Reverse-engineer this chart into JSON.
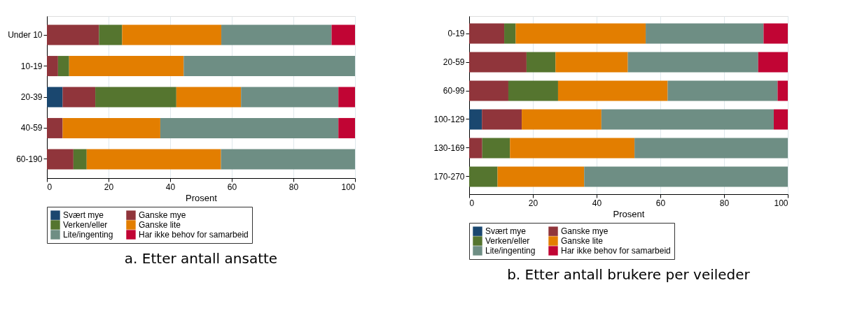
{
  "chart_data": [
    {
      "type": "bar",
      "orientation": "horizontal",
      "stacked": true,
      "title": "a. Etter antall ansatte",
      "xlabel": "Prosent",
      "categories": [
        "Under 10",
        "10-19",
        "20-39",
        "40-59",
        "60-190"
      ],
      "series": [
        {
          "name": "Svært mye",
          "color": "#1a476f",
          "values": [
            0,
            0,
            5.1,
            0,
            0
          ]
        },
        {
          "name": "Ganske mye",
          "color": "#90353b",
          "values": [
            16.9,
            3.6,
            10.6,
            5.1,
            8.6
          ]
        },
        {
          "name": "Verken/eller",
          "color": "#55752f",
          "values": [
            7.5,
            3.6,
            26.3,
            0,
            4.3
          ]
        },
        {
          "name": "Ganske lite",
          "color": "#e37e00",
          "values": [
            32.2,
            37.2,
            21.0,
            31.7,
            43.6
          ]
        },
        {
          "name": "Lite/ingenting",
          "color": "#6e8e84",
          "values": [
            35.8,
            55.6,
            31.6,
            57.8,
            43.5
          ]
        },
        {
          "name": "Har ikke behov for samarbeid",
          "color": "#c10534",
          "values": [
            7.6,
            0,
            5.4,
            5.4,
            0
          ]
        }
      ],
      "xlim": [
        0,
        100
      ],
      "xticks": [
        0,
        20,
        40,
        60,
        80,
        100
      ],
      "grid": "x",
      "legend": "bottom"
    },
    {
      "type": "bar",
      "orientation": "horizontal",
      "stacked": true,
      "title": "b. Etter antall brukere per veileder",
      "xlabel": "Prosent",
      "categories": [
        "0-19",
        "20-59",
        "60-99",
        "100-129",
        "130-169",
        "170-270"
      ],
      "series": [
        {
          "name": "Svært mye",
          "color": "#1a476f",
          "values": [
            0,
            0,
            0,
            4.0,
            0,
            0
          ]
        },
        {
          "name": "Ganske mye",
          "color": "#90353b",
          "values": [
            11.0,
            18.0,
            12.3,
            12.5,
            4.1,
            0
          ]
        },
        {
          "name": "Verken/eller",
          "color": "#55752f",
          "values": [
            3.6,
            9.1,
            15.6,
            0,
            8.7,
            8.9
          ]
        },
        {
          "name": "Ganske lite",
          "color": "#e37e00",
          "values": [
            40.8,
            22.7,
            34.4,
            25.0,
            39.1,
            27.2
          ]
        },
        {
          "name": "Lite/ingenting",
          "color": "#6e8e84",
          "values": [
            37.0,
            40.9,
            34.5,
            54.1,
            48.1,
            63.9
          ]
        },
        {
          "name": "Har ikke behov for samarbeid",
          "color": "#c10534",
          "values": [
            7.6,
            9.3,
            3.2,
            4.4,
            0,
            0
          ]
        }
      ],
      "xlim": [
        0,
        100
      ],
      "xticks": [
        0,
        20,
        40,
        60,
        80,
        100
      ],
      "grid": "x",
      "legend": "bottom"
    }
  ]
}
